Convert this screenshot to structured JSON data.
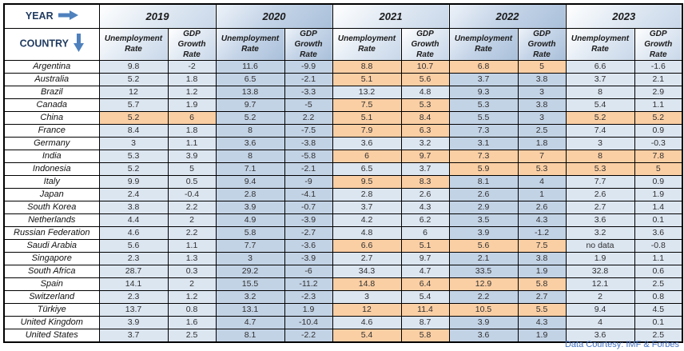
{
  "chart_data": {
    "type": "table",
    "corner_top_label": "YEAR",
    "corner_bottom_label": "COUNTRY",
    "years": [
      "2019",
      "2020",
      "2021",
      "2022",
      "2023"
    ],
    "metrics": [
      "Unemployment Rate",
      "GDP Growth Rate"
    ],
    "rows": [
      {
        "country": "Argentina",
        "values": [
          "9.8",
          "-2",
          "11.6",
          "-9.9",
          "8.8",
          "10.7",
          "6.8",
          "5",
          "6.6",
          "-1.6"
        ],
        "highlighted": [
          4,
          5,
          6,
          7
        ]
      },
      {
        "country": "Australia",
        "values": [
          "5.2",
          "1.8",
          "6.5",
          "-2.1",
          "5.1",
          "5.6",
          "3.7",
          "3.8",
          "3.7",
          "2.1"
        ],
        "highlighted": [
          4,
          5
        ]
      },
      {
        "country": "Brazil",
        "values": [
          "12",
          "1.2",
          "13.8",
          "-3.3",
          "13.2",
          "4.8",
          "9.3",
          "3",
          "8",
          "2.9"
        ],
        "highlighted": []
      },
      {
        "country": "Canada",
        "values": [
          "5.7",
          "1.9",
          "9.7",
          "-5",
          "7.5",
          "5.3",
          "5.3",
          "3.8",
          "5.4",
          "1.1"
        ],
        "highlighted": [
          4,
          5
        ]
      },
      {
        "country": "China",
        "values": [
          "5.2",
          "6",
          "5.2",
          "2.2",
          "5.1",
          "8.4",
          "5.5",
          "3",
          "5.2",
          "5.2"
        ],
        "highlighted": [
          0,
          1,
          4,
          5,
          8,
          9
        ]
      },
      {
        "country": "France",
        "values": [
          "8.4",
          "1.8",
          "8",
          "-7.5",
          "7.9",
          "6.3",
          "7.3",
          "2.5",
          "7.4",
          "0.9"
        ],
        "highlighted": [
          4,
          5
        ]
      },
      {
        "country": "Germany",
        "values": [
          "3",
          "1.1",
          "3.6",
          "-3.8",
          "3.6",
          "3.2",
          "3.1",
          "1.8",
          "3",
          "-0.3"
        ],
        "highlighted": []
      },
      {
        "country": "India",
        "values": [
          "5.3",
          "3.9",
          "8",
          "-5.8",
          "6",
          "9.7",
          "7.3",
          "7",
          "8",
          "7.8"
        ],
        "highlighted": [
          4,
          5,
          6,
          7,
          8,
          9
        ]
      },
      {
        "country": "Indonesia",
        "values": [
          "5.2",
          "5",
          "7.1",
          "-2.1",
          "6.5",
          "3.7",
          "5.9",
          "5.3",
          "5.3",
          "5"
        ],
        "highlighted": [
          6,
          7,
          8,
          9
        ]
      },
      {
        "country": "Italy",
        "values": [
          "9.9",
          "0.5",
          "9.4",
          "-9",
          "9.5",
          "8.3",
          "8.1",
          "4",
          "7.7",
          "0.9"
        ],
        "highlighted": [
          4,
          5
        ]
      },
      {
        "country": "Japan",
        "values": [
          "2.4",
          "-0.4",
          "2.8",
          "-4.1",
          "2.8",
          "2.6",
          "2.6",
          "1",
          "2.6",
          "1.9"
        ],
        "highlighted": []
      },
      {
        "country": "South Korea",
        "values": [
          "3.8",
          "2.2",
          "3.9",
          "-0.7",
          "3.7",
          "4.3",
          "2.9",
          "2.6",
          "2.7",
          "1.4"
        ],
        "highlighted": []
      },
      {
        "country": "Netherlands",
        "values": [
          "4.4",
          "2",
          "4.9",
          "-3.9",
          "4.2",
          "6.2",
          "3.5",
          "4.3",
          "3.6",
          "0.1"
        ],
        "highlighted": []
      },
      {
        "country": "Russian Federation",
        "values": [
          "4.6",
          "2.2",
          "5.8",
          "-2.7",
          "4.8",
          "6",
          "3.9",
          "-1.2",
          "3.2",
          "3.6"
        ],
        "highlighted": []
      },
      {
        "country": "Saudi Arabia",
        "values": [
          "5.6",
          "1.1",
          "7.7",
          "-3.6",
          "6.6",
          "5.1",
          "5.6",
          "7.5",
          "no data",
          "-0.8"
        ],
        "highlighted": [
          4,
          5,
          6,
          7
        ]
      },
      {
        "country": "Singapore",
        "values": [
          "2.3",
          "1.3",
          "3",
          "-3.9",
          "2.7",
          "9.7",
          "2.1",
          "3.8",
          "1.9",
          "1.1"
        ],
        "highlighted": []
      },
      {
        "country": "South Africa",
        "values": [
          "28.7",
          "0.3",
          "29.2",
          "-6",
          "34.3",
          "4.7",
          "33.5",
          "1.9",
          "32.8",
          "0.6"
        ],
        "highlighted": []
      },
      {
        "country": "Spain",
        "values": [
          "14.1",
          "2",
          "15.5",
          "-11.2",
          "14.8",
          "6.4",
          "12.9",
          "5.8",
          "12.1",
          "2.5"
        ],
        "highlighted": [
          4,
          5,
          6,
          7
        ]
      },
      {
        "country": "Switzerland",
        "values": [
          "2.3",
          "1.2",
          "3.2",
          "-2.3",
          "3",
          "5.4",
          "2.2",
          "2.7",
          "2",
          "0.8"
        ],
        "highlighted": []
      },
      {
        "country": "Türkiye",
        "values": [
          "13.7",
          "0.8",
          "13.1",
          "1.9",
          "12",
          "11.4",
          "10.5",
          "5.5",
          "9.4",
          "4.5"
        ],
        "highlighted": [
          4,
          5,
          6,
          7
        ]
      },
      {
        "country": "United Kingdom",
        "values": [
          "3.9",
          "1.6",
          "4.7",
          "-10.4",
          "4.6",
          "8.7",
          "3.9",
          "4.3",
          "4",
          "0.1"
        ],
        "highlighted": []
      },
      {
        "country": "United States",
        "values": [
          "3.7",
          "2.5",
          "8.1",
          "-2.2",
          "5.4",
          "5.8",
          "3.6",
          "1.9",
          "3.6",
          "2.5"
        ],
        "highlighted": [
          4,
          5
        ]
      }
    ],
    "source_note": "Data Courtesy: IMF & Forbes",
    "colors": {
      "highlight": "#FBCFA4",
      "band_odd_years": "#DCE6F1",
      "band_even_years": "#C3D3E6",
      "arrow": "#4F81BD",
      "source_note_text": "#4472C4"
    },
    "icons": {
      "year_arrow": "right-arrow",
      "country_arrow": "down-arrow"
    }
  }
}
